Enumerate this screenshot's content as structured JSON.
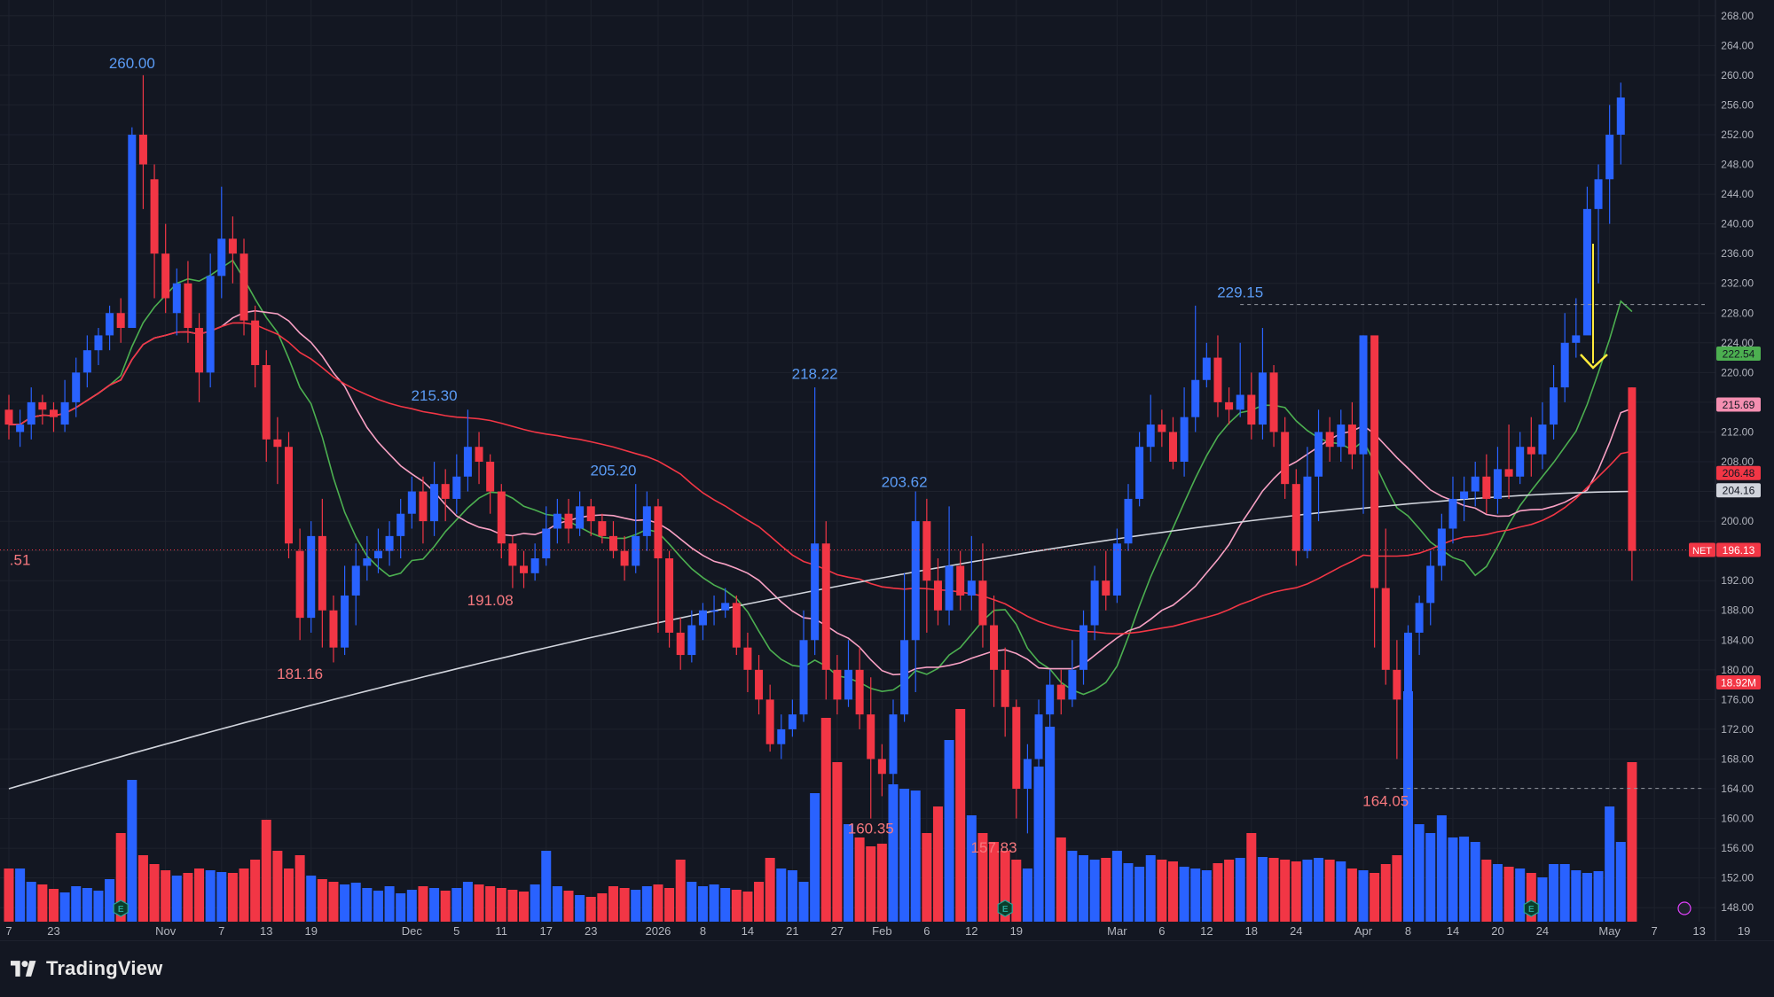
{
  "app": {
    "brand": "TradingView"
  },
  "chart_data": {
    "type": "candlestick",
    "symbol": "NET",
    "last_price_label": "196.13",
    "volume_label": "18.92M",
    "ma_labels": [
      {
        "value": "222.54",
        "color": "#4caf50"
      },
      {
        "value": "215.69",
        "color": "#f48fb1"
      },
      {
        "value": "206.48",
        "color": "#f23645"
      },
      {
        "value": "204.16",
        "color": "#d1d4dc"
      }
    ],
    "ylim": [
      146,
      270
    ],
    "y_ticks": [
      "148.00",
      "152.00",
      "156.00",
      "160.00",
      "164.00",
      "168.00",
      "172.00",
      "176.00",
      "180.00",
      "184.00",
      "188.00",
      "192.00",
      "196.00",
      "200.00",
      "204.00",
      "208.00",
      "212.00",
      "216.00",
      "220.00",
      "224.00",
      "228.00",
      "232.00",
      "236.00",
      "240.00",
      "244.00",
      "248.00",
      "252.00",
      "256.00",
      "260.00",
      "264.00",
      "268.00"
    ],
    "x_ticks": [
      {
        "i": 0,
        "label": "7"
      },
      {
        "i": 4,
        "label": "23"
      },
      {
        "i": 14,
        "label": "Nov"
      },
      {
        "i": 19,
        "label": "7"
      },
      {
        "i": 23,
        "label": "13"
      },
      {
        "i": 27,
        "label": "19"
      },
      {
        "i": 36,
        "label": "Dec"
      },
      {
        "i": 40,
        "label": "5"
      },
      {
        "i": 44,
        "label": "11"
      },
      {
        "i": 48,
        "label": "17"
      },
      {
        "i": 52,
        "label": "23"
      },
      {
        "i": 58,
        "label": "2026"
      },
      {
        "i": 62,
        "label": "8"
      },
      {
        "i": 66,
        "label": "14"
      },
      {
        "i": 70,
        "label": "21"
      },
      {
        "i": 74,
        "label": "27"
      },
      {
        "i": 78,
        "label": "Feb"
      },
      {
        "i": 82,
        "label": "6"
      },
      {
        "i": 86,
        "label": "12"
      },
      {
        "i": 90,
        "label": "19"
      },
      {
        "i": 99,
        "label": "Mar"
      },
      {
        "i": 103,
        "label": "6"
      },
      {
        "i": 107,
        "label": "12"
      },
      {
        "i": 111,
        "label": "18"
      },
      {
        "i": 115,
        "label": "24"
      },
      {
        "i": 121,
        "label": "Apr"
      },
      {
        "i": 125,
        "label": "8"
      },
      {
        "i": 129,
        "label": "14"
      },
      {
        "i": 133,
        "label": "20"
      },
      {
        "i": 137,
        "label": "24"
      },
      {
        "i": 143,
        "label": "May"
      },
      {
        "i": 147,
        "label": "7"
      },
      {
        "i": 151,
        "label": "13"
      },
      {
        "i": 155,
        "label": "19"
      }
    ],
    "annotations": [
      {
        "i": 11,
        "price": 260.0,
        "label": "260.00",
        "pos": "above"
      },
      {
        "i": 26,
        "price": 181.16,
        "label": "181.16",
        "pos": "below"
      },
      {
        "i": 1,
        "price": 196.51,
        "label": ".51",
        "pos": "below"
      },
      {
        "i": 38,
        "price": 215.3,
        "label": "215.30",
        "pos": "above"
      },
      {
        "i": 43,
        "price": 191.08,
        "label": "191.08",
        "pos": "below"
      },
      {
        "i": 54,
        "price": 205.2,
        "label": "205.20",
        "pos": "above"
      },
      {
        "i": 72,
        "price": 218.22,
        "label": "218.22",
        "pos": "above"
      },
      {
        "i": 80,
        "price": 203.62,
        "label": "203.62",
        "pos": "above"
      },
      {
        "i": 77,
        "price": 160.35,
        "label": "160.35",
        "pos": "below"
      },
      {
        "i": 88,
        "price": 157.83,
        "label": "157.83",
        "pos": "below"
      },
      {
        "i": 110,
        "price": 229.15,
        "label": "229.15",
        "pos": "above"
      },
      {
        "i": 123,
        "price": 164.05,
        "label": "164.05",
        "pos": "below"
      }
    ],
    "dashed_levels": [
      {
        "price": 229.15,
        "from_i": 110
      },
      {
        "price": 164.05,
        "from_i": 123
      }
    ],
    "candles": [
      [
        215,
        213,
        217,
        211
      ],
      [
        212,
        213,
        215,
        210
      ],
      [
        213,
        216,
        218,
        211
      ],
      [
        216,
        215,
        217,
        213
      ],
      [
        215,
        214,
        216,
        212
      ],
      [
        213,
        216,
        219,
        212
      ],
      [
        216,
        220,
        222,
        214
      ],
      [
        220,
        223,
        225,
        218
      ],
      [
        223,
        225,
        226,
        221
      ],
      [
        225,
        228,
        229,
        223
      ],
      [
        228,
        226,
        230,
        224
      ],
      [
        226,
        252,
        253,
        236
      ],
      [
        252,
        248,
        260,
        242
      ],
      [
        246,
        236,
        248,
        230
      ],
      [
        236,
        230,
        240,
        228
      ],
      [
        228,
        232,
        234,
        225
      ],
      [
        232,
        226,
        235,
        224
      ],
      [
        226,
        220,
        228,
        216
      ],
      [
        220,
        233,
        236,
        218
      ],
      [
        233,
        238,
        245,
        230
      ],
      [
        238,
        236,
        241,
        232
      ],
      [
        236,
        227,
        238,
        225
      ],
      [
        227,
        221,
        229,
        218
      ],
      [
        221,
        211,
        223,
        208
      ],
      [
        211,
        210,
        214,
        205
      ],
      [
        210,
        197,
        212,
        195
      ],
      [
        196,
        187,
        199,
        184
      ],
      [
        187,
        198,
        200,
        185
      ],
      [
        198,
        188,
        203,
        183
      ],
      [
        188,
        183,
        190,
        181
      ],
      [
        183,
        190,
        194,
        182
      ],
      [
        190,
        194,
        197,
        186
      ],
      [
        194,
        195,
        198,
        192
      ],
      [
        195,
        196,
        199,
        193
      ],
      [
        196,
        198,
        200,
        194
      ],
      [
        198,
        201,
        203,
        195
      ],
      [
        201,
        204,
        206,
        199
      ],
      [
        204,
        200,
        206,
        197
      ],
      [
        200,
        205,
        208,
        198
      ],
      [
        205,
        203,
        207,
        200
      ],
      [
        203,
        206,
        209,
        201
      ],
      [
        206,
        210,
        215,
        204
      ],
      [
        210,
        208,
        212,
        205
      ],
      [
        208,
        204,
        209,
        201
      ],
      [
        204,
        197,
        205,
        195
      ],
      [
        197,
        194,
        198,
        191
      ],
      [
        194,
        193,
        196,
        191
      ],
      [
        193,
        195,
        197,
        192
      ],
      [
        195,
        199,
        202,
        194
      ],
      [
        199,
        201,
        203,
        197
      ],
      [
        201,
        199,
        203,
        197
      ],
      [
        199,
        202,
        204,
        198
      ],
      [
        202,
        200,
        203,
        198
      ],
      [
        200,
        198,
        201,
        197
      ],
      [
        198,
        196,
        200,
        195
      ],
      [
        196,
        194,
        198,
        192
      ],
      [
        194,
        198,
        205,
        193
      ],
      [
        198,
        202,
        204,
        196
      ],
      [
        202,
        195,
        203,
        185
      ],
      [
        195,
        185,
        196,
        183
      ],
      [
        185,
        182,
        187,
        180
      ],
      [
        182,
        186,
        188,
        181
      ],
      [
        186,
        188,
        189,
        184
      ],
      [
        188,
        188,
        190,
        186
      ],
      [
        188,
        189,
        191,
        187
      ],
      [
        189,
        183,
        190,
        182
      ],
      [
        183,
        180,
        185,
        177
      ],
      [
        180,
        176,
        182,
        174
      ],
      [
        176,
        170,
        178,
        169
      ],
      [
        170,
        172,
        174,
        168
      ],
      [
        172,
        174,
        176,
        171
      ],
      [
        174,
        184,
        188,
        173
      ],
      [
        184,
        197,
        218,
        182
      ],
      [
        197,
        180,
        200,
        176
      ],
      [
        180,
        176,
        182,
        174
      ],
      [
        176,
        180,
        184,
        175
      ],
      [
        180,
        174,
        183,
        172
      ],
      [
        174,
        168,
        179,
        160
      ],
      [
        168,
        166,
        170,
        163
      ],
      [
        166,
        174,
        176,
        164
      ],
      [
        174,
        184,
        193,
        173
      ],
      [
        184,
        200,
        204,
        177
      ],
      [
        200,
        192,
        203,
        185
      ],
      [
        192,
        188,
        195,
        186
      ],
      [
        188,
        194,
        202,
        186
      ],
      [
        194,
        190,
        196,
        188
      ],
      [
        190,
        192,
        198,
        188
      ],
      [
        192,
        186,
        197,
        183
      ],
      [
        186,
        180,
        190,
        175
      ],
      [
        180,
        175,
        183,
        171
      ],
      [
        175,
        164,
        176,
        160
      ],
      [
        164,
        168,
        170,
        158
      ],
      [
        168,
        174,
        176,
        166
      ],
      [
        174,
        178,
        180,
        172
      ],
      [
        178,
        176,
        180,
        174
      ],
      [
        176,
        180,
        184,
        175
      ],
      [
        180,
        186,
        188,
        178
      ],
      [
        186,
        192,
        194,
        184
      ],
      [
        192,
        190,
        196,
        188
      ],
      [
        190,
        197,
        199,
        189
      ],
      [
        197,
        203,
        205,
        196
      ],
      [
        203,
        210,
        212,
        202
      ],
      [
        210,
        213,
        217,
        208
      ],
      [
        213,
        212,
        215,
        210
      ],
      [
        212,
        208,
        214,
        207
      ],
      [
        208,
        214,
        218,
        206
      ],
      [
        214,
        219,
        229,
        212
      ],
      [
        219,
        222,
        224,
        218
      ],
      [
        222,
        216,
        225,
        214
      ],
      [
        216,
        215,
        218,
        213
      ],
      [
        215,
        217,
        224,
        214
      ],
      [
        217,
        213,
        220,
        211
      ],
      [
        213,
        220,
        226,
        211
      ],
      [
        220,
        212,
        221,
        210
      ],
      [
        212,
        205,
        214,
        203
      ],
      [
        205,
        196,
        207,
        194
      ],
      [
        196,
        206,
        210,
        195
      ],
      [
        206,
        212,
        215,
        200
      ],
      [
        212,
        210,
        214,
        208
      ],
      [
        210,
        213,
        215,
        208
      ],
      [
        213,
        209,
        216,
        207
      ],
      [
        209,
        225,
        225,
        201
      ],
      [
        225,
        191,
        208,
        183
      ],
      [
        191,
        180,
        199,
        178
      ],
      [
        180,
        176,
        184,
        168
      ],
      [
        176,
        185,
        186,
        174
      ],
      [
        185,
        189,
        190,
        182
      ],
      [
        189,
        194,
        196,
        186
      ],
      [
        194,
        199,
        201,
        192
      ],
      [
        199,
        203,
        206,
        197
      ],
      [
        203,
        204,
        206,
        200
      ],
      [
        204,
        206,
        208,
        202
      ],
      [
        206,
        203,
        209,
        201
      ],
      [
        203,
        207,
        210,
        201
      ],
      [
        207,
        206,
        213,
        203
      ],
      [
        206,
        210,
        212,
        205
      ],
      [
        210,
        209,
        214,
        206
      ],
      [
        209,
        213,
        216,
        207
      ],
      [
        213,
        218,
        221,
        211
      ],
      [
        218,
        224,
        228,
        216
      ],
      [
        224,
        225,
        230,
        222
      ],
      [
        225,
        242,
        245,
        231
      ],
      [
        242,
        246,
        248,
        232
      ],
      [
        246,
        252,
        256,
        240
      ],
      [
        252,
        257,
        259,
        248
      ],
      [
        218,
        196,
        218,
        192
      ]
    ],
    "volume_highs": [
      60,
      60,
      45,
      42,
      37,
      33,
      40,
      38,
      35,
      48,
      100,
      160,
      75,
      65,
      58,
      52,
      55,
      60,
      58,
      56,
      55,
      60,
      70,
      115,
      80,
      60,
      75,
      52,
      48,
      45,
      42,
      44,
      38,
      35,
      40,
      32,
      36,
      40,
      38,
      35,
      38,
      45,
      42,
      40,
      38,
      36,
      34,
      42,
      80,
      40,
      35,
      30,
      28,
      32,
      40,
      38,
      36,
      40,
      42,
      38,
      70,
      45,
      40,
      42,
      38,
      36,
      34,
      45,
      72,
      60,
      58,
      45,
      145,
      230,
      180,
      110,
      95,
      85,
      88,
      155,
      150,
      148,
      100,
      130,
      205,
      240,
      120,
      100,
      90,
      80,
      70,
      60,
      175,
      220,
      95,
      80,
      75,
      70,
      72,
      80,
      66,
      62,
      75,
      70,
      68,
      62,
      60,
      58,
      66,
      70,
      72,
      100,
      73,
      72,
      70,
      68,
      70,
      72,
      70,
      68,
      60,
      58,
      55,
      65,
      75,
      260,
      110,
      100,
      120,
      95,
      96,
      90,
      70,
      65,
      62,
      60,
      55,
      50,
      65,
      65,
      58,
      55,
      57,
      130,
      90,
      180,
      340
    ],
    "ma_series": [
      {
        "name": "",
        "color": "#4caf50",
        "period": 10
      },
      {
        "name": "",
        "color": "#f8a1c4",
        "period": 20
      },
      {
        "name": "",
        "color": "#f23645",
        "period": 50
      },
      {
        "name": "",
        "color": "#d1d4dc",
        "period": 200
      }
    ]
  }
}
